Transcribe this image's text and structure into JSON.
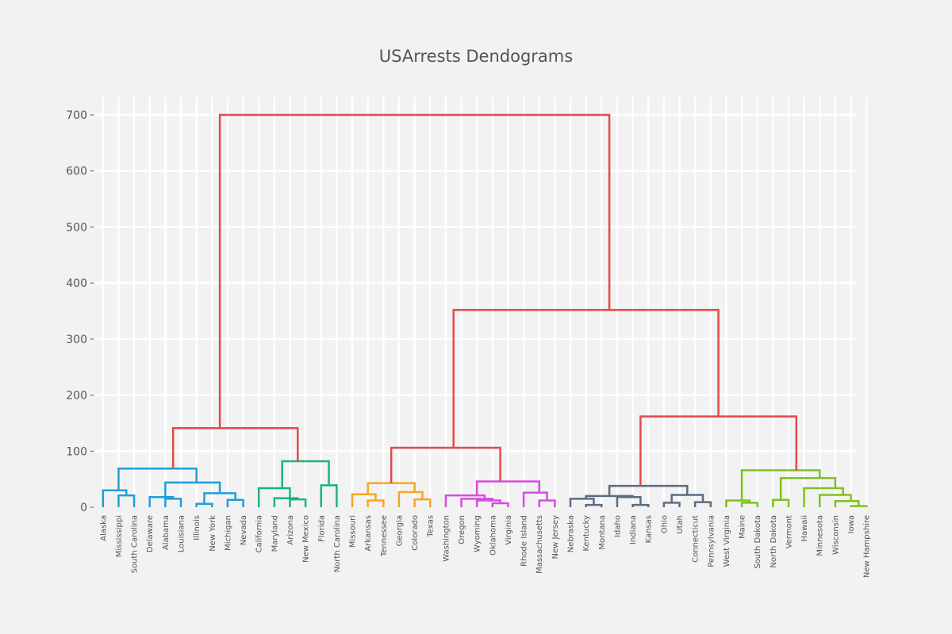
{
  "chart_data": {
    "type": "dendrogram",
    "title": "USArrests Dendograms",
    "ylim": [
      0,
      730
    ],
    "yticks": [
      0,
      100,
      200,
      300,
      400,
      500,
      600,
      700
    ],
    "ytick_labels": [
      "0",
      "100",
      "200",
      "300",
      "400",
      "500",
      "600",
      "700"
    ],
    "grid": true,
    "colors": {
      "root": "#e24a4a",
      "cluster_1": "#1f9fd8",
      "cluster_2": "#1ab383",
      "cluster_3": "#f5a623",
      "cluster_4": "#d24fe0",
      "cluster_5": "#5b6b80",
      "cluster_6": "#7ec31c"
    },
    "leaves": [
      "Alaska",
      "Mississippi",
      "South Carolina",
      "Delaware",
      "Alabama",
      "Louisiana",
      "Illinois",
      "New York",
      "Michigan",
      "Nevada",
      "California",
      "Maryland",
      "Arizona",
      "New Mexico",
      "Florida",
      "North Carolina",
      "Missouri",
      "Arkansas",
      "Tennessee",
      "Georgia",
      "Colorado",
      "Texas",
      "Washington",
      "Oregon",
      "Wyoming",
      "Oklahoma",
      "Virginia",
      "Rhode Island",
      "Massachusetts",
      "New Jersey",
      "Nebraska",
      "Kentucky",
      "Montana",
      "Idaho",
      "Indiana",
      "Kansas",
      "Ohio",
      "Utah",
      "Connecticut",
      "Pennsylvania",
      "West Virginia",
      "Maine",
      "South Dakota",
      "North Dakota",
      "Vermont",
      "Hawaii",
      "Minnesota",
      "Wisconsin",
      "Iowa",
      "New Hampshire"
    ],
    "merges": [
      {
        "left": "Mississippi",
        "right": "South Carolina",
        "height": 21,
        "color": "cluster_1"
      },
      {
        "left": "Alaska",
        "right": [
          "Mississippi",
          "South Carolina"
        ],
        "height": 30,
        "color": "cluster_1"
      },
      {
        "left": "Alabama",
        "right": "Louisiana",
        "height": 15,
        "color": "cluster_1"
      },
      {
        "left": "Delaware",
        "right": [
          "Alabama",
          "Louisiana"
        ],
        "height": 18,
        "color": "cluster_1"
      },
      {
        "left": "Illinois",
        "right": "New York",
        "height": 6,
        "color": "cluster_1"
      },
      {
        "left": "Michigan",
        "right": "Nevada",
        "height": 13,
        "color": "cluster_1"
      },
      {
        "left": [
          "Illinois",
          "New York"
        ],
        "right": [
          "Michigan",
          "Nevada"
        ],
        "height": 25,
        "color": "cluster_1"
      },
      {
        "left": [
          "Delaware",
          "Alabama",
          "Louisiana"
        ],
        "right": [
          "Illinois",
          "New York",
          "Michigan",
          "Nevada"
        ],
        "height": 44,
        "color": "cluster_1"
      },
      {
        "left": [
          "Alaska",
          "Mississippi",
          "South Carolina"
        ],
        "right": [
          "Delaware",
          "Alabama",
          "Louisiana",
          "Illinois",
          "New York",
          "Michigan",
          "Nevada"
        ],
        "height": 69,
        "color": "cluster_1"
      },
      {
        "left": "Arizona",
        "right": "New Mexico",
        "height": 14,
        "color": "cluster_2"
      },
      {
        "left": "Maryland",
        "right": [
          "Arizona",
          "New Mexico"
        ],
        "height": 16,
        "color": "cluster_2"
      },
      {
        "left": "California",
        "right": [
          "Maryland",
          "Arizona",
          "New Mexico"
        ],
        "height": 34,
        "color": "cluster_2"
      },
      {
        "left": "Florida",
        "right": "North Carolina",
        "height": 39,
        "color": "cluster_2"
      },
      {
        "left": [
          "California",
          "Maryland",
          "Arizona",
          "New Mexico"
        ],
        "right": [
          "Florida",
          "North Carolina"
        ],
        "height": 82,
        "color": "cluster_2"
      },
      {
        "left": [
          "Alaska",
          "Mississippi",
          "South Carolina",
          "Delaware",
          "Alabama",
          "Louisiana",
          "Illinois",
          "New York",
          "Michigan",
          "Nevada"
        ],
        "right": [
          "California",
          "Maryland",
          "Arizona",
          "New Mexico",
          "Florida",
          "North Carolina"
        ],
        "height": 141,
        "color": "root"
      },
      {
        "left": "Arkansas",
        "right": "Tennessee",
        "height": 12,
        "color": "cluster_3"
      },
      {
        "left": "Missouri",
        "right": [
          "Arkansas",
          "Tennessee"
        ],
        "height": 23,
        "color": "cluster_3"
      },
      {
        "left": "Colorado",
        "right": "Texas",
        "height": 14,
        "color": "cluster_3"
      },
      {
        "left": "Georgia",
        "right": [
          "Colorado",
          "Texas"
        ],
        "height": 27,
        "color": "cluster_3"
      },
      {
        "left": [
          "Missouri",
          "Arkansas",
          "Tennessee"
        ],
        "right": [
          "Georgia",
          "Colorado",
          "Texas"
        ],
        "height": 43,
        "color": "cluster_3"
      },
      {
        "left": "Oklahoma",
        "right": "Virginia",
        "height": 7,
        "color": "cluster_4"
      },
      {
        "left": "Wyoming",
        "right": [
          "Oklahoma",
          "Virginia"
        ],
        "height": 12,
        "color": "cluster_4"
      },
      {
        "left": "Oregon",
        "right": [
          "Wyoming",
          "Oklahoma",
          "Virginia"
        ],
        "height": 15,
        "color": "cluster_4"
      },
      {
        "left": "Washington",
        "right": [
          "Oregon",
          "Wyoming",
          "Oklahoma",
          "Virginia"
        ],
        "height": 21,
        "color": "cluster_4"
      },
      {
        "left": "Massachusetts",
        "right": "New Jersey",
        "height": 12,
        "color": "cluster_4"
      },
      {
        "left": "Rhode Island",
        "right": [
          "Massachusetts",
          "New Jersey"
        ],
        "height": 26,
        "color": "cluster_4"
      },
      {
        "left": [
          "Washington",
          "Oregon",
          "Wyoming",
          "Oklahoma",
          "Virginia"
        ],
        "right": [
          "Rhode Island",
          "Massachusetts",
          "New Jersey"
        ],
        "height": 46,
        "color": "cluster_4"
      },
      {
        "left": [
          "Missouri",
          "Arkansas",
          "Tennessee",
          "Georgia",
          "Colorado",
          "Texas"
        ],
        "right": [
          "Washington",
          "Oregon",
          "Wyoming",
          "Oklahoma",
          "Virginia",
          "Rhode Island",
          "Massachusetts",
          "New Jersey"
        ],
        "height": 106,
        "color": "root"
      },
      {
        "left": "Kentucky",
        "right": "Montana",
        "height": 4,
        "color": "cluster_5"
      },
      {
        "left": "Nebraska",
        "right": [
          "Kentucky",
          "Montana"
        ],
        "height": 15,
        "color": "cluster_5"
      },
      {
        "left": "Kansas",
        "right": "Indiana",
        "height": 4,
        "color": "cluster_5"
      },
      {
        "left": "Idaho",
        "right": [
          "Indiana",
          "Kansas"
        ],
        "height": 18,
        "color": "cluster_5"
      },
      {
        "left": [
          "Nebraska",
          "Kentucky",
          "Montana"
        ],
        "right": [
          "Idaho",
          "Indiana",
          "Kansas"
        ],
        "height": 20,
        "color": "cluster_5"
      },
      {
        "left": "Ohio",
        "right": "Utah",
        "height": 8,
        "color": "cluster_5"
      },
      {
        "left": "Connecticut",
        "right": "Pennsylvania",
        "height": 9,
        "color": "cluster_5"
      },
      {
        "left": [
          "Ohio",
          "Utah"
        ],
        "right": [
          "Connecticut",
          "Pennsylvania"
        ],
        "height": 22,
        "color": "cluster_5"
      },
      {
        "left": [
          "Nebraska",
          "Kentucky",
          "Montana",
          "Idaho",
          "Indiana",
          "Kansas"
        ],
        "right": [
          "Ohio",
          "Utah",
          "Connecticut",
          "Pennsylvania"
        ],
        "height": 38,
        "color": "cluster_5"
      },
      {
        "left": "Maine",
        "right": "South Dakota",
        "height": 8,
        "color": "cluster_6"
      },
      {
        "left": "West Virginia",
        "right": [
          "Maine",
          "South Dakota"
        ],
        "height": 12,
        "color": "cluster_6"
      },
      {
        "left": "North Dakota",
        "right": "Vermont",
        "height": 13,
        "color": "cluster_6"
      },
      {
        "left": "Iowa",
        "right": "New Hampshire",
        "height": 2,
        "color": "cluster_6"
      },
      {
        "left": "Wisconsin",
        "right": [
          "Iowa",
          "New Hampshire"
        ],
        "height": 11,
        "color": "cluster_6"
      },
      {
        "left": "Minnesota",
        "right": [
          "Wisconsin",
          "Iowa",
          "New Hampshire"
        ],
        "height": 22,
        "color": "cluster_6"
      },
      {
        "left": "Hawaii",
        "right": [
          "Minnesota",
          "Wisconsin",
          "Iowa",
          "New Hampshire"
        ],
        "height": 34,
        "color": "cluster_6"
      },
      {
        "left": [
          "North Dakota",
          "Vermont"
        ],
        "right": [
          "Hawaii",
          "Minnesota",
          "Wisconsin",
          "Iowa",
          "New Hampshire"
        ],
        "height": 52,
        "color": "cluster_6"
      },
      {
        "left": [
          "West Virginia",
          "Maine",
          "South Dakota"
        ],
        "right": [
          "North Dakota",
          "Vermont",
          "Hawaii",
          "Minnesota",
          "Wisconsin",
          "Iowa",
          "New Hampshire"
        ],
        "height": 66,
        "color": "cluster_6"
      },
      {
        "left": [
          "Nebraska",
          "Kentucky",
          "Montana",
          "Idaho",
          "Indiana",
          "Kansas",
          "Ohio",
          "Utah",
          "Connecticut",
          "Pennsylvania"
        ],
        "right": [
          "West Virginia",
          "Maine",
          "South Dakota",
          "North Dakota",
          "Vermont",
          "Hawaii",
          "Minnesota",
          "Wisconsin",
          "Iowa",
          "New Hampshire"
        ],
        "height": 162,
        "color": "root"
      },
      {
        "left": [
          "Missouri",
          "Arkansas",
          "Tennessee",
          "Georgia",
          "Colorado",
          "Texas",
          "Washington",
          "Oregon",
          "Wyoming",
          "Oklahoma",
          "Virginia",
          "Rhode Island",
          "Massachusetts",
          "New Jersey"
        ],
        "right": [
          "Nebraska",
          "Kentucky",
          "Montana",
          "Idaho",
          "Indiana",
          "Kansas",
          "Ohio",
          "Utah",
          "Connecticut",
          "Pennsylvania",
          "West Virginia",
          "Maine",
          "South Dakota",
          "North Dakota",
          "Vermont",
          "Hawaii",
          "Minnesota",
          "Wisconsin",
          "Iowa",
          "New Hampshire"
        ],
        "height": 352,
        "color": "root"
      },
      {
        "left": [
          "Alaska",
          "Mississippi",
          "South Carolina",
          "Delaware",
          "Alabama",
          "Louisiana",
          "Illinois",
          "New York",
          "Michigan",
          "Nevada",
          "California",
          "Maryland",
          "Arizona",
          "New Mexico",
          "Florida",
          "North Carolina"
        ],
        "right": [
          "Missouri",
          "Arkansas",
          "Tennessee",
          "Georgia",
          "Colorado",
          "Texas",
          "Washington",
          "Oregon",
          "Wyoming",
          "Oklahoma",
          "Virginia",
          "Rhode Island",
          "Massachusetts",
          "New Jersey",
          "Nebraska",
          "Kentucky",
          "Montana",
          "Idaho",
          "Indiana",
          "Kansas",
          "Ohio",
          "Utah",
          "Connecticut",
          "Pennsylvania",
          "West Virginia",
          "Maine",
          "South Dakota",
          "North Dakota",
          "Vermont",
          "Hawaii",
          "Minnesota",
          "Wisconsin",
          "Iowa",
          "New Hampshire"
        ],
        "height": 700,
        "color": "root"
      }
    ]
  }
}
